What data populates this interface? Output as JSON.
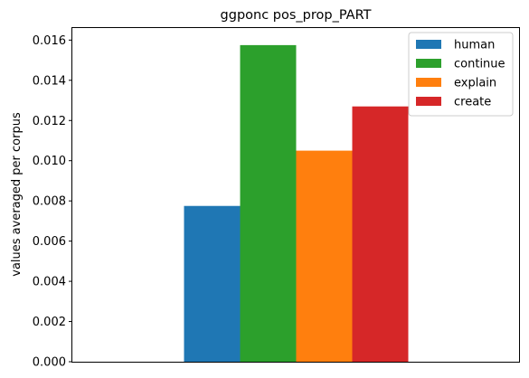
{
  "chart_data": {
    "type": "bar",
    "title": "ggponc pos_prop_PART",
    "xlabel": "",
    "ylabel": "values averaged per corpus",
    "ylim": [
      0,
      0.0166
    ],
    "yticks": [
      "0.000",
      "0.002",
      "0.004",
      "0.006",
      "0.008",
      "0.010",
      "0.012",
      "0.014",
      "0.016"
    ],
    "grid": false,
    "legend_position": "top-right",
    "series": [
      {
        "name": "human",
        "values": [
          0.00775
        ],
        "color": "#1f77b4"
      },
      {
        "name": "continue",
        "values": [
          0.01575
        ],
        "color": "#2ca02c"
      },
      {
        "name": "explain",
        "values": [
          0.0105
        ],
        "color": "#ff7f0e"
      },
      {
        "name": "create",
        "values": [
          0.0127
        ],
        "color": "#d62728"
      }
    ]
  }
}
